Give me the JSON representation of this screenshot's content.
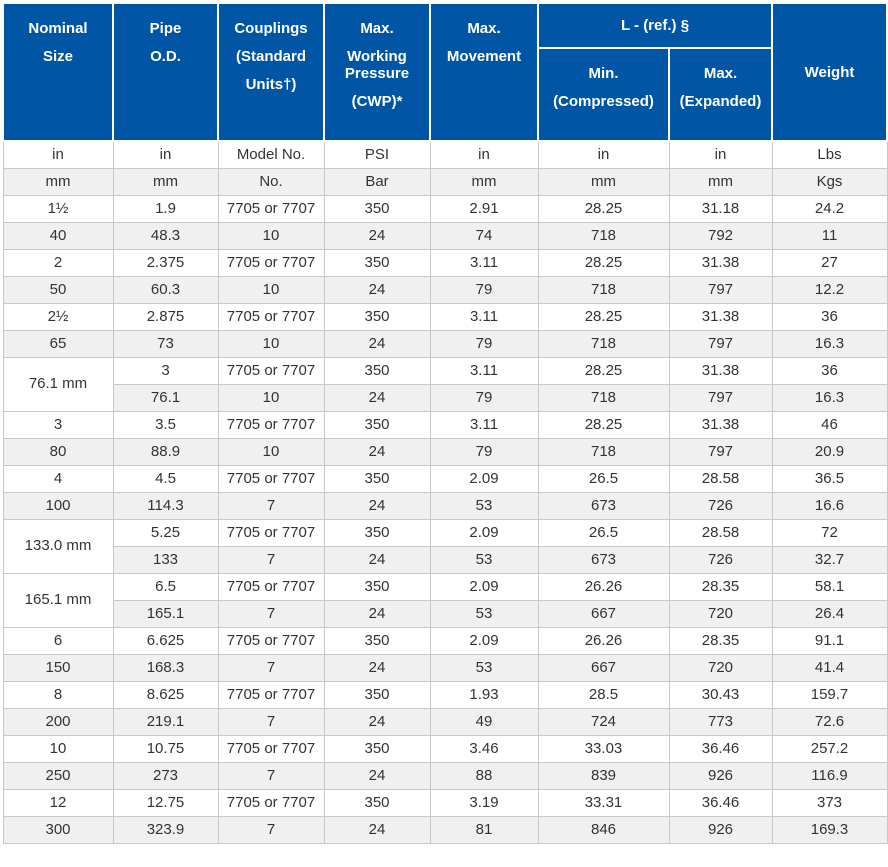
{
  "colors": {
    "header_bg": "#0056a5",
    "header_text": "#ffffff",
    "stripe_bg": "#f0f0f0",
    "row_bg": "#ffffff",
    "cell_border": "#c8c8c8",
    "cell_text": "#333333"
  },
  "table": {
    "header": {
      "cols": [
        {
          "id": "nominal-size",
          "lines": [
            "Nominal",
            "Size"
          ]
        },
        {
          "id": "pipe-od",
          "lines": [
            "Pipe",
            "O.D."
          ]
        },
        {
          "id": "couplings",
          "lines": [
            "Couplings",
            "(Standard",
            "Units†)"
          ]
        },
        {
          "id": "max-working-pressure",
          "lines": [
            "Max.",
            "Working Pressure",
            "(CWP)*"
          ]
        },
        {
          "id": "max-movement",
          "lines": [
            "Max.",
            "Movement"
          ]
        },
        {
          "id": "weight",
          "lines": [
            "Weight"
          ]
        }
      ],
      "group": {
        "label": "L - (ref.) §",
        "sub": [
          {
            "id": "min-compressed",
            "lines": [
              "Min.",
              "(Compressed)"
            ]
          },
          {
            "id": "max-expanded",
            "lines": [
              "Max.",
              "(Expanded)"
            ]
          }
        ]
      }
    },
    "unit_rows": [
      [
        "in",
        "in",
        "Model No.",
        "PSI",
        "in",
        "in",
        "in",
        "Lbs"
      ],
      [
        "mm",
        "mm",
        "No.",
        "Bar",
        "mm",
        "mm",
        "mm",
        "Kgs"
      ]
    ],
    "rows": [
      {
        "cells": [
          "1½",
          "1.9",
          "7705 or 7707",
          "350",
          "2.91",
          "28.25",
          "31.18",
          "24.2"
        ]
      },
      {
        "cells": [
          "40",
          "48.3",
          "10",
          "24",
          "74",
          "718",
          "792",
          "11"
        ]
      },
      {
        "cells": [
          "2",
          "2.375",
          "7705 or 7707",
          "350",
          "3.11",
          "28.25",
          "31.38",
          "27"
        ]
      },
      {
        "cells": [
          "50",
          "60.3",
          "10",
          "24",
          "79",
          "718",
          "797",
          "12.2"
        ]
      },
      {
        "cells": [
          "2½",
          "2.875",
          "7705 or 7707",
          "350",
          "3.11",
          "28.25",
          "31.38",
          "36"
        ]
      },
      {
        "cells": [
          "65",
          "73",
          "10",
          "24",
          "79",
          "718",
          "797",
          "16.3"
        ]
      },
      {
        "rowspan_first": 2,
        "cells": [
          "76.1 mm",
          "3",
          "7705 or 7707",
          "350",
          "3.11",
          "28.25",
          "31.38",
          "36"
        ]
      },
      {
        "skip_first": true,
        "cells": [
          "76.1",
          "10",
          "24",
          "79",
          "718",
          "797",
          "16.3"
        ]
      },
      {
        "cells": [
          "3",
          "3.5",
          "7705 or 7707",
          "350",
          "3.11",
          "28.25",
          "31.38",
          "46"
        ]
      },
      {
        "cells": [
          "80",
          "88.9",
          "10",
          "24",
          "79",
          "718",
          "797",
          "20.9"
        ]
      },
      {
        "cells": [
          "4",
          "4.5",
          "7705 or 7707",
          "350",
          "2.09",
          "26.5",
          "28.58",
          "36.5"
        ]
      },
      {
        "cells": [
          "100",
          "114.3",
          "7",
          "24",
          "53",
          "673",
          "726",
          "16.6"
        ]
      },
      {
        "rowspan_first": 2,
        "cells": [
          "133.0 mm",
          "5.25",
          "7705 or 7707",
          "350",
          "2.09",
          "26.5",
          "28.58",
          "72"
        ]
      },
      {
        "skip_first": true,
        "cells": [
          "133",
          "7",
          "24",
          "53",
          "673",
          "726",
          "32.7"
        ]
      },
      {
        "rowspan_first": 2,
        "cells": [
          "165.1 mm",
          "6.5",
          "7705 or 7707",
          "350",
          "2.09",
          "26.26",
          "28.35",
          "58.1"
        ]
      },
      {
        "skip_first": true,
        "cells": [
          "165.1",
          "7",
          "24",
          "53",
          "667",
          "720",
          "26.4"
        ]
      },
      {
        "cells": [
          "6",
          "6.625",
          "7705 or 7707",
          "350",
          "2.09",
          "26.26",
          "28.35",
          "91.1"
        ]
      },
      {
        "cells": [
          "150",
          "168.3",
          "7",
          "24",
          "53",
          "667",
          "720",
          "41.4"
        ]
      },
      {
        "cells": [
          "8",
          "8.625",
          "7705 or 7707",
          "350",
          "1.93",
          "28.5",
          "30.43",
          "159.7"
        ]
      },
      {
        "cells": [
          "200",
          "219.1",
          "7",
          "24",
          "49",
          "724",
          "773",
          "72.6"
        ]
      },
      {
        "cells": [
          "10",
          "10.75",
          "7705 or 7707",
          "350",
          "3.46",
          "33.03",
          "36.46",
          "257.2"
        ]
      },
      {
        "cells": [
          "250",
          "273",
          "7",
          "24",
          "88",
          "839",
          "926",
          "116.9"
        ]
      },
      {
        "cells": [
          "12",
          "12.75",
          "7705 or 7707",
          "350",
          "3.19",
          "33.31",
          "36.46",
          "373"
        ]
      },
      {
        "cells": [
          "300",
          "323.9",
          "7",
          "24",
          "81",
          "846",
          "926",
          "169.3"
        ]
      }
    ]
  }
}
